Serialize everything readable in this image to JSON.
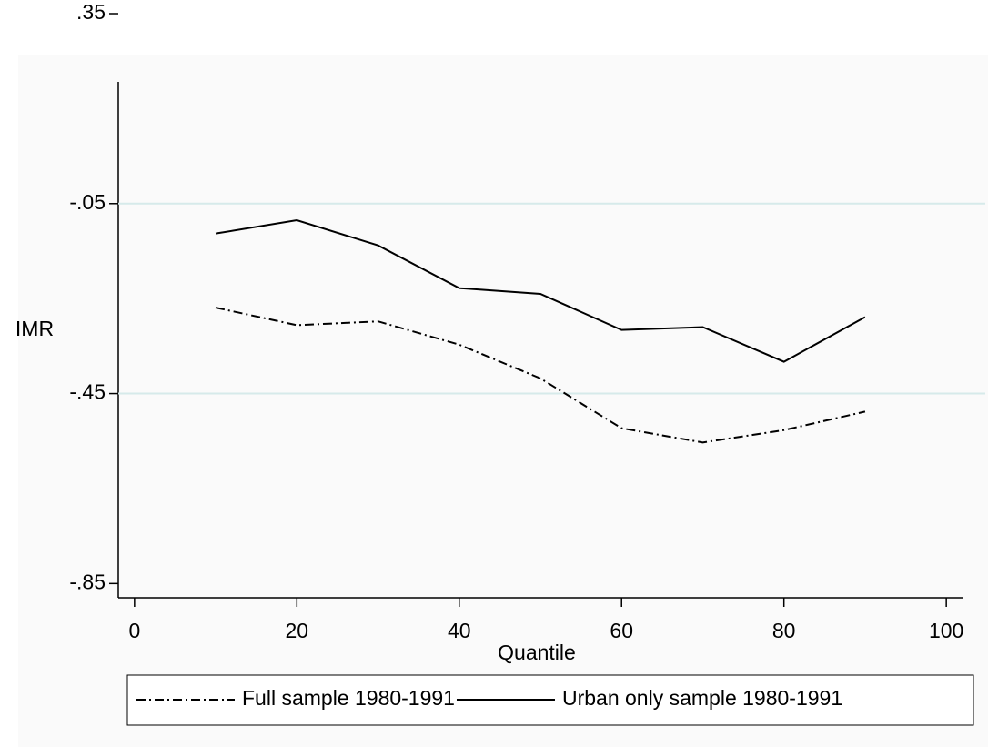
{
  "chart_data": {
    "type": "line",
    "x_label": "Quantile",
    "y_label": "IMR",
    "x": [
      10,
      20,
      30,
      40,
      50,
      60,
      70,
      80,
      90
    ],
    "series": [
      {
        "name": "Full sample 1980-1991",
        "color": "#000000",
        "dash": "dashdot",
        "values": [
          -0.269,
          -0.306,
          -0.298,
          -0.347,
          -0.418,
          -0.523,
          -0.553,
          -0.527,
          -0.488
        ]
      },
      {
        "name": "Urban only sample 1980-1991",
        "color": "#000000",
        "dash": "solid",
        "values": [
          -0.113,
          -0.085,
          -0.138,
          -0.228,
          -0.24,
          -0.316,
          -0.31,
          -0.383,
          -0.289
        ]
      }
    ],
    "xlim": [
      -2,
      102
    ],
    "xticks": [
      0,
      20,
      40,
      60,
      80,
      100
    ],
    "ylim": [
      -0.88,
      0.35
    ],
    "yticks": [
      {
        "value": -0.85,
        "label": "-.85"
      },
      {
        "value": -0.45,
        "label": "-.45"
      },
      {
        "value": -0.05,
        "label": "-.05"
      },
      {
        "value": 0.35,
        "label": ".35"
      }
    ],
    "grid": true,
    "legend": "bottom"
  }
}
